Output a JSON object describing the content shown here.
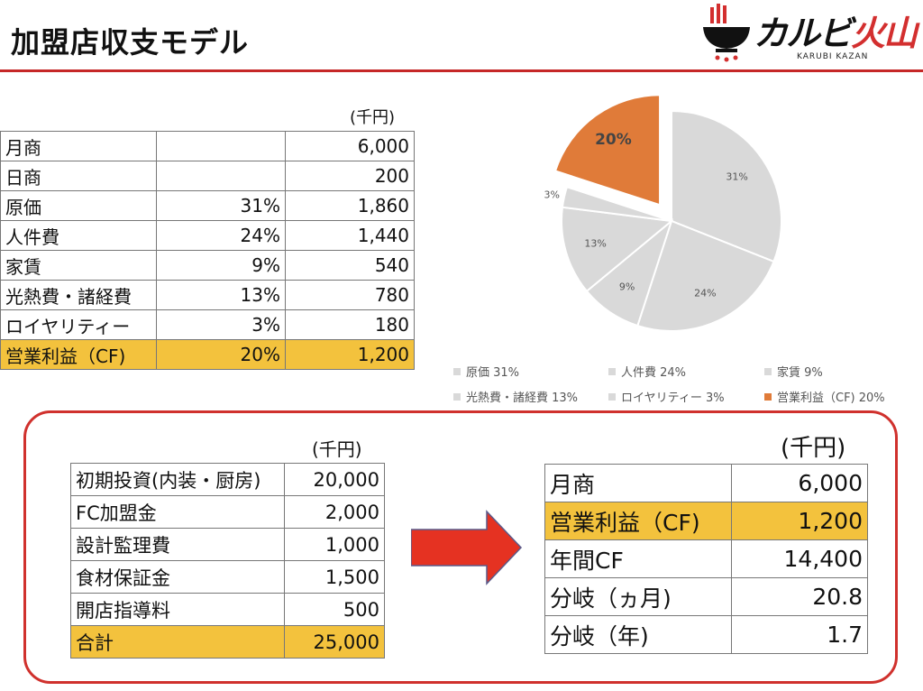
{
  "slide": {
    "title": "加盟店収支モデル",
    "logo_text_a": "カルビ",
    "logo_text_b": "火山",
    "logo_sub": "KARUBI KAZAN",
    "accent_color": "#c62828"
  },
  "income_table": {
    "unit": "(千円)",
    "rows": [
      {
        "label": "月商",
        "pct": "",
        "value": "6,000"
      },
      {
        "label": "日商",
        "pct": "",
        "value": "200"
      },
      {
        "label": "原価",
        "pct": "31%",
        "value": "1,860"
      },
      {
        "label": "人件費",
        "pct": "24%",
        "value": "1,440"
      },
      {
        "label": "家賃",
        "pct": "9%",
        "value": "540"
      },
      {
        "label": "光熱費・諸経費",
        "pct": "13%",
        "value": "780"
      },
      {
        "label": "ロイヤリティー",
        "pct": "3%",
        "value": "180"
      },
      {
        "label": "営業利益（CF)",
        "pct": "20%",
        "value": "1,200"
      }
    ]
  },
  "chart_data": {
    "type": "pie",
    "slices": [
      {
        "name": "原価",
        "value": 31,
        "label": "31%",
        "color": "#d9d9d9"
      },
      {
        "name": "人件費",
        "value": 24,
        "label": "24%",
        "color": "#d9d9d9"
      },
      {
        "name": "家賃",
        "value": 9,
        "label": "9%",
        "color": "#d9d9d9"
      },
      {
        "name": "光熱費・諸経費",
        "value": 13,
        "label": "13%",
        "color": "#d9d9d9"
      },
      {
        "name": "ロイヤリティー",
        "value": 3,
        "label": "3%",
        "color": "#d9d9d9"
      },
      {
        "name": "営業利益（CF)",
        "value": 20,
        "label": "20%",
        "color": "#e07b39"
      }
    ],
    "exploded": "営業利益（CF)",
    "legend_position": "bottom",
    "legend": [
      "原価 31%",
      "人件費 24%",
      "家賃 9%",
      "光熱費・諸経費 13%",
      "ロイヤリティー 3%",
      "営業利益（CF) 20%"
    ]
  },
  "investment_table": {
    "unit": "(千円)",
    "rows": [
      {
        "label": "初期投資(内装・厨房)",
        "value": "20,000"
      },
      {
        "label": "FC加盟金",
        "value": "2,000"
      },
      {
        "label": "設計監理費",
        "value": "1,000"
      },
      {
        "label": "食材保証金",
        "value": "1,500"
      },
      {
        "label": "開店指導料",
        "value": "500"
      },
      {
        "label": "合計",
        "value": "25,000"
      }
    ]
  },
  "result_table": {
    "unit": "(千円)",
    "rows": [
      {
        "label": "月商",
        "value": "6,000"
      },
      {
        "label": "営業利益（CF)",
        "value": "1,200"
      },
      {
        "label": "年間CF",
        "value": "14,400"
      },
      {
        "label": "分岐（ヵ月)",
        "value": "20.8"
      },
      {
        "label": "分岐（年)",
        "value": "1.7"
      }
    ]
  }
}
